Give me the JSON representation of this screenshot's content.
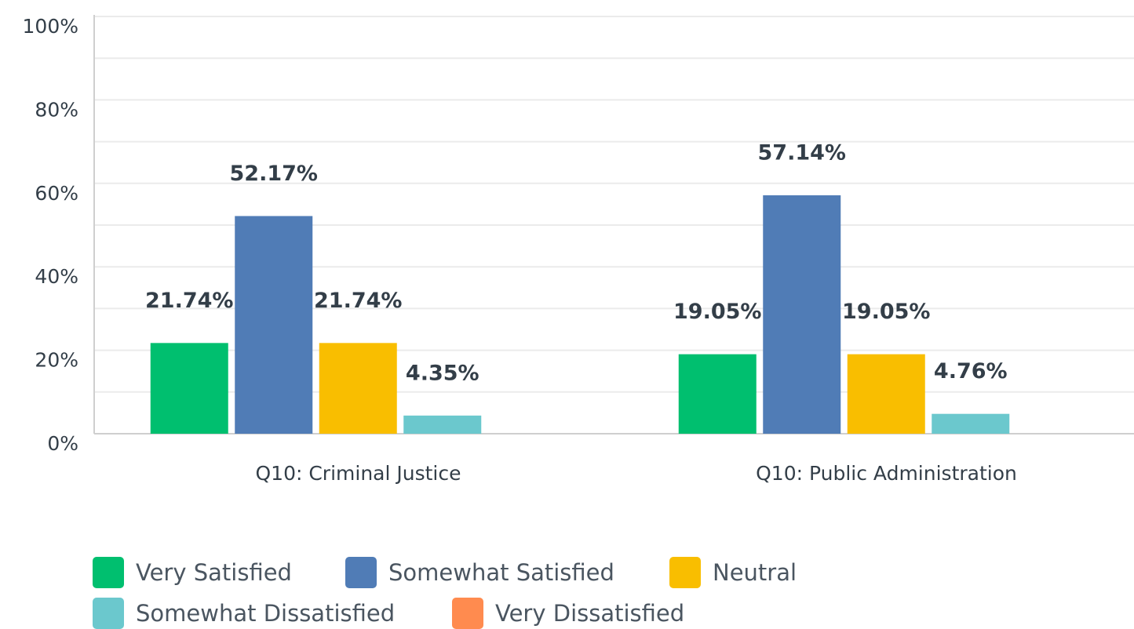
{
  "chart_data": {
    "type": "bar",
    "categories": [
      "Q10: Criminal Justice",
      "Q10: Public Administration"
    ],
    "series": [
      {
        "name": "Very Satisfied",
        "color": "#00bf6f",
        "values": [
          21.74,
          19.05
        ],
        "value_labels": [
          "21.74%",
          "19.05%"
        ]
      },
      {
        "name": "Somewhat Satisfied",
        "color": "#507cb6",
        "values": [
          52.17,
          57.14
        ],
        "value_labels": [
          "52.17%",
          "57.14%"
        ]
      },
      {
        "name": "Neutral",
        "color": "#f9be00",
        "values": [
          21.74,
          19.05
        ],
        "value_labels": [
          "21.74%",
          "19.05%"
        ]
      },
      {
        "name": "Somewhat Dissatisfied",
        "color": "#6bc8cd",
        "values": [
          4.35,
          4.76
        ],
        "value_labels": [
          "4.35%",
          "4.76%"
        ]
      },
      {
        "name": "Very Dissatisfied",
        "color": "#ff8b4f",
        "values": [
          0,
          0
        ]
      }
    ],
    "ylim": [
      0,
      100
    ],
    "yticks": [
      {
        "value": 0,
        "label": "0%"
      },
      {
        "value": 20,
        "label": "20%"
      },
      {
        "value": 40,
        "label": "40%"
      },
      {
        "value": 60,
        "label": "60%"
      },
      {
        "value": 80,
        "label": "80%"
      },
      {
        "value": 100,
        "label": "100%"
      }
    ],
    "minor_yticks": [
      10,
      30,
      50,
      70,
      90
    ],
    "grid": true
  }
}
